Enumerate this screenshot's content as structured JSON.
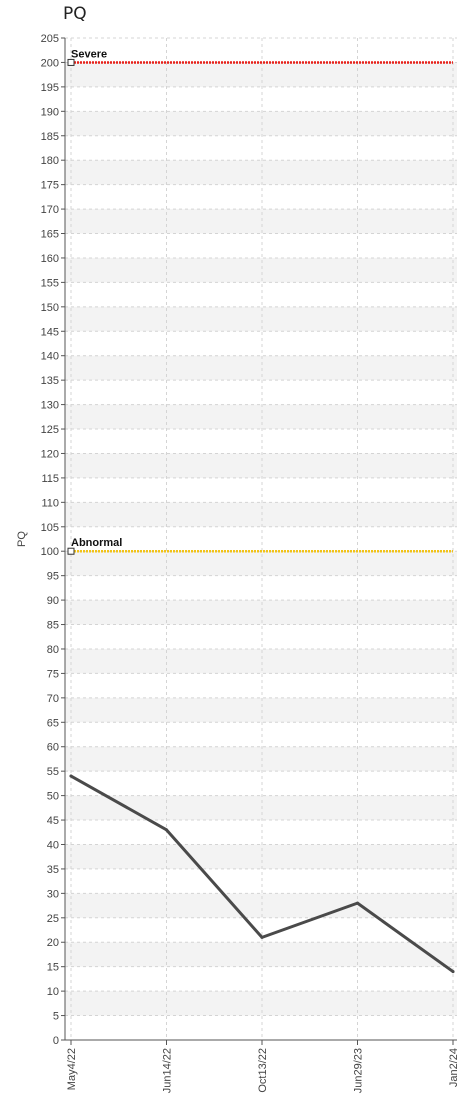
{
  "chart_data": {
    "type": "line",
    "title": "PQ",
    "ylabel": "PQ",
    "xlabel": "",
    "ylim": [
      0,
      205
    ],
    "ytick_step": 5,
    "grid": true,
    "categories": [
      "May4/22",
      "Jun14/22",
      "Oct13/22",
      "Jun29/23",
      "Jan2/24"
    ],
    "series": [
      {
        "values": [
          54,
          43,
          21,
          28,
          14
        ],
        "color": "#4a4a4a"
      }
    ],
    "reference_lines": [
      {
        "label": "Severe",
        "value": 200,
        "color": "#e8221b"
      },
      {
        "label": "Abnormal",
        "value": 100,
        "color": "#f2c318"
      }
    ]
  }
}
